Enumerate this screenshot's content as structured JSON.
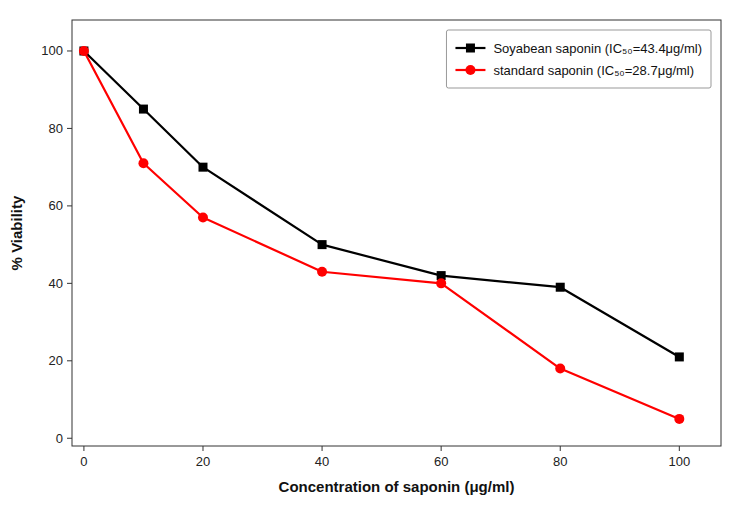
{
  "chart_data": {
    "type": "line",
    "x": [
      0,
      10,
      20,
      40,
      60,
      80,
      100
    ],
    "series": [
      {
        "name": "Soyabean saponin (IC₅₀=43.4μg/ml)",
        "color": "#000000",
        "marker": "square",
        "values": [
          100,
          85,
          70,
          50,
          42,
          39,
          21
        ]
      },
      {
        "name": "standard saponin (IC₅₀=28.7μg/ml)",
        "color": "#ff0000",
        "marker": "circle",
        "values": [
          100,
          71,
          57,
          43,
          40,
          18,
          5
        ]
      }
    ],
    "xlabel": "Concentration of saponin (μg/ml)",
    "ylabel": "% Viability",
    "xlim": [
      -2,
      107
    ],
    "ylim": [
      -2,
      108
    ],
    "xticks": [
      0,
      20,
      40,
      60,
      80,
      100
    ],
    "yticks": [
      0,
      20,
      40,
      60,
      80,
      100
    ],
    "grid": false,
    "legend": "upper right"
  }
}
